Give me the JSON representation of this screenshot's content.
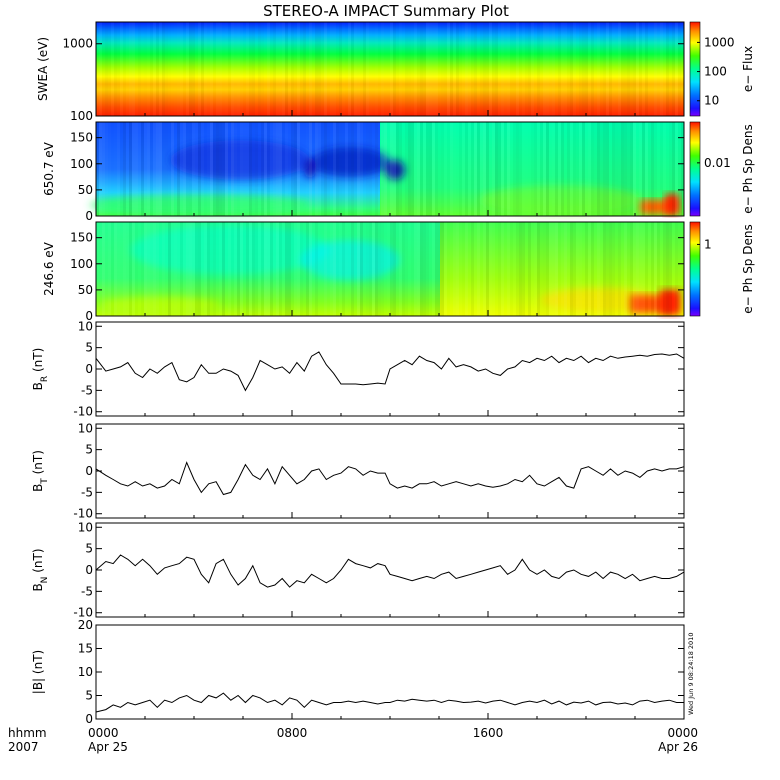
{
  "title": "STEREO-A IMPACT Summary Plot",
  "timestamp": "Wed Jun  9 08:24:18 2010",
  "time_axis": {
    "row1_label": "hhmm",
    "row2_label": "2007",
    "ticks": [
      {
        "hour": 0,
        "time": "0000",
        "date": "Apr 25"
      },
      {
        "hour": 8,
        "time": "0800",
        "date": ""
      },
      {
        "hour": 16,
        "time": "1600",
        "date": ""
      },
      {
        "hour": 24,
        "time": "0000",
        "date": "Apr 26"
      }
    ]
  },
  "chart_data": [
    {
      "type": "heatmap",
      "ylabel": "SWEA (eV)",
      "y_scale": "log",
      "ylim": [
        100,
        2000
      ],
      "yticks": [
        {
          "v": 100,
          "label": "100"
        },
        {
          "v": 1000,
          "label": "1000"
        }
      ],
      "colorbar_label": "e− Flux",
      "colorbar_scale": "log",
      "colorbar_range": [
        3,
        5000
      ],
      "colorbar_ticks": [
        {
          "v": 10,
          "label": "10"
        },
        {
          "v": 100,
          "label": "100"
        },
        {
          "v": 1000,
          "label": "1000"
        }
      ]
    },
    {
      "type": "heatmap",
      "ylabel": "650.7 eV",
      "ylim": [
        0,
        180
      ],
      "yticks": [
        {
          "v": 0,
          "label": "0"
        },
        {
          "v": 50,
          "label": "50"
        },
        {
          "v": 100,
          "label": "100"
        },
        {
          "v": 150,
          "label": "150"
        }
      ],
      "colorbar_label": "e− Ph Sp Dens",
      "colorbar_scale": "log",
      "colorbar_range": [
        0.0005,
        0.1
      ],
      "colorbar_ticks": [
        {
          "v": 0.01,
          "label": "0.01"
        }
      ]
    },
    {
      "type": "heatmap",
      "ylabel": "246.6 eV",
      "ylim": [
        0,
        180
      ],
      "yticks": [
        {
          "v": 0,
          "label": "0"
        },
        {
          "v": 50,
          "label": "50"
        },
        {
          "v": 100,
          "label": "100"
        },
        {
          "v": 150,
          "label": "150"
        }
      ],
      "colorbar_label": "e− Ph Sp Dens",
      "colorbar_scale": "log",
      "colorbar_range": [
        0.03,
        3
      ],
      "colorbar_ticks": [
        {
          "v": 1,
          "label": "1"
        }
      ]
    },
    {
      "type": "line",
      "ylabel": "B",
      "ylabel_sub": "R",
      "ylabel_unit": " (nT)",
      "ylim": [
        -11,
        11
      ],
      "yticks": [
        -10,
        -5,
        0,
        5,
        10
      ],
      "x_hours": [
        0,
        0.4,
        0.7,
        1.0,
        1.3,
        1.6,
        1.9,
        2.2,
        2.5,
        2.8,
        3.1,
        3.4,
        3.7,
        4.0,
        4.3,
        4.6,
        4.9,
        5.2,
        5.5,
        5.8,
        6.1,
        6.4,
        6.7,
        7.0,
        7.3,
        7.6,
        7.9,
        8.2,
        8.5,
        8.8,
        9.1,
        9.4,
        9.7,
        10.0,
        10.3,
        10.6,
        10.9,
        11.2,
        11.5,
        11.8,
        12.0,
        12.3,
        12.6,
        12.9,
        13.2,
        13.5,
        13.8,
        14.1,
        14.4,
        14.7,
        15.0,
        15.3,
        15.6,
        15.9,
        16.2,
        16.5,
        16.8,
        17.1,
        17.4,
        17.7,
        18.0,
        18.3,
        18.6,
        18.9,
        19.2,
        19.5,
        19.8,
        20.1,
        20.4,
        20.7,
        21.0,
        21.3,
        21.6,
        21.9,
        22.2,
        22.5,
        22.8,
        23.1,
        23.4,
        23.7,
        24.0
      ],
      "values": [
        2.5,
        -0.5,
        0.0,
        0.5,
        1.5,
        -1.0,
        -2.0,
        0.0,
        -1.0,
        0.5,
        1.5,
        -2.5,
        -3.0,
        -2.0,
        1.0,
        -1.0,
        -1.0,
        0.0,
        -0.5,
        -1.5,
        -5.0,
        -2.0,
        2.0,
        1.0,
        0.0,
        0.5,
        -1.0,
        1.5,
        -0.5,
        3.0,
        4.0,
        1.0,
        -1.0,
        -3.5,
        -3.5,
        -3.5,
        -3.7,
        -3.5,
        -3.3,
        -3.5,
        0.0,
        1.0,
        2.0,
        1.0,
        3.0,
        2.0,
        1.5,
        0.0,
        2.5,
        0.5,
        1.0,
        0.5,
        -0.5,
        0.0,
        -1.0,
        -1.5,
        0.0,
        0.5,
        2.0,
        1.5,
        2.5,
        2.0,
        3.0,
        1.5,
        2.5,
        2.0,
        3.0,
        1.5,
        2.5,
        2.0,
        3.0,
        2.5,
        2.8,
        3.0,
        3.2,
        3.0,
        3.4,
        3.5,
        3.2,
        3.5,
        2.5
      ]
    },
    {
      "type": "line",
      "ylabel": "B",
      "ylabel_sub": "T",
      "ylabel_unit": " (nT)",
      "ylim": [
        -11,
        11
      ],
      "yticks": [
        -10,
        -5,
        0,
        5,
        10
      ],
      "x_hours": [
        0,
        0.4,
        0.7,
        1.0,
        1.3,
        1.6,
        1.9,
        2.2,
        2.5,
        2.8,
        3.1,
        3.4,
        3.7,
        4.0,
        4.3,
        4.6,
        4.9,
        5.2,
        5.5,
        5.8,
        6.1,
        6.4,
        6.7,
        7.0,
        7.3,
        7.6,
        7.9,
        8.2,
        8.5,
        8.8,
        9.1,
        9.4,
        9.7,
        10.0,
        10.3,
        10.6,
        10.9,
        11.2,
        11.5,
        11.8,
        12.0,
        12.3,
        12.6,
        12.9,
        13.2,
        13.5,
        13.8,
        14.1,
        14.4,
        14.7,
        15.0,
        15.3,
        15.6,
        15.9,
        16.2,
        16.5,
        16.8,
        17.1,
        17.4,
        17.7,
        18.0,
        18.3,
        18.6,
        18.9,
        19.2,
        19.5,
        19.8,
        20.1,
        20.4,
        20.7,
        21.0,
        21.3,
        21.6,
        21.9,
        22.2,
        22.5,
        22.8,
        23.1,
        23.4,
        23.7,
        24.0
      ],
      "values": [
        0.5,
        -1.0,
        -2.0,
        -3.0,
        -3.5,
        -2.5,
        -3.5,
        -3.0,
        -4.0,
        -3.5,
        -2.0,
        -3.0,
        2.0,
        -2.0,
        -5.0,
        -3.0,
        -2.5,
        -5.5,
        -5.0,
        -2.0,
        1.5,
        -1.0,
        -2.0,
        0.5,
        -3.0,
        1.0,
        -1.0,
        -3.0,
        -2.0,
        0.0,
        0.5,
        -2.0,
        -1.0,
        -0.5,
        1.0,
        0.5,
        -1.0,
        0.0,
        -0.5,
        -0.5,
        -3.0,
        -4.0,
        -3.5,
        -4.0,
        -3.0,
        -3.0,
        -2.5,
        -3.5,
        -3.0,
        -2.5,
        -3.0,
        -3.5,
        -3.0,
        -3.5,
        -3.8,
        -3.5,
        -3.0,
        -2.0,
        -2.5,
        -1.0,
        -3.0,
        -3.5,
        -2.5,
        -1.5,
        -3.5,
        -4.0,
        0.5,
        1.0,
        0.0,
        -1.0,
        0.5,
        -1.0,
        0.0,
        -0.5,
        -1.5,
        0.0,
        0.5,
        0.0,
        0.5,
        0.5,
        1.0
      ]
    },
    {
      "type": "line",
      "ylabel": "B",
      "ylabel_sub": "N",
      "ylabel_unit": " (nT)",
      "ylim": [
        -11,
        11
      ],
      "yticks": [
        -10,
        -5,
        0,
        5,
        10
      ],
      "x_hours": [
        0,
        0.4,
        0.7,
        1.0,
        1.3,
        1.6,
        1.9,
        2.2,
        2.5,
        2.8,
        3.1,
        3.4,
        3.7,
        4.0,
        4.3,
        4.6,
        4.9,
        5.2,
        5.5,
        5.8,
        6.1,
        6.4,
        6.7,
        7.0,
        7.3,
        7.6,
        7.9,
        8.2,
        8.5,
        8.8,
        9.1,
        9.4,
        9.7,
        10.0,
        10.3,
        10.6,
        10.9,
        11.2,
        11.5,
        11.8,
        12.0,
        12.3,
        12.6,
        12.9,
        13.2,
        13.5,
        13.8,
        14.1,
        14.4,
        14.7,
        15.0,
        15.3,
        15.6,
        15.9,
        16.2,
        16.5,
        16.8,
        17.1,
        17.4,
        17.7,
        18.0,
        18.3,
        18.6,
        18.9,
        19.2,
        19.5,
        19.8,
        20.1,
        20.4,
        20.7,
        21.0,
        21.3,
        21.6,
        21.9,
        22.2,
        22.5,
        22.8,
        23.1,
        23.4,
        23.7,
        24.0
      ],
      "values": [
        0.0,
        2.0,
        1.5,
        3.5,
        2.5,
        1.0,
        2.5,
        1.0,
        -1.0,
        0.5,
        1.0,
        1.5,
        3.0,
        2.5,
        -1.0,
        -3.0,
        1.5,
        2.5,
        -1.0,
        -3.5,
        -2.0,
        1.0,
        -3.0,
        -4.0,
        -3.5,
        -2.0,
        -4.0,
        -2.5,
        -3.0,
        -1.0,
        -2.0,
        -3.0,
        -2.0,
        0.0,
        2.5,
        1.5,
        1.0,
        0.5,
        1.5,
        1.0,
        -1.0,
        -1.5,
        -2.0,
        -2.5,
        -2.0,
        -1.5,
        -2.0,
        -1.0,
        -0.5,
        -2.0,
        -1.5,
        -1.0,
        -0.5,
        0.0,
        0.5,
        1.0,
        -1.0,
        0.0,
        2.5,
        0.0,
        -1.0,
        0.0,
        -1.5,
        -2.0,
        -0.5,
        0.0,
        -1.0,
        -1.5,
        -0.5,
        -2.0,
        -0.5,
        -1.0,
        -2.0,
        -1.0,
        -2.5,
        -2.0,
        -1.5,
        -2.0,
        -2.0,
        -1.5,
        -0.5
      ]
    },
    {
      "type": "line",
      "ylabel": "|B|",
      "ylabel_sub": "",
      "ylabel_unit": " (nT)",
      "ylim": [
        0,
        20
      ],
      "yticks": [
        0,
        5,
        10,
        15,
        20
      ],
      "x_hours": [
        0,
        0.4,
        0.7,
        1.0,
        1.3,
        1.6,
        1.9,
        2.2,
        2.5,
        2.8,
        3.1,
        3.4,
        3.7,
        4.0,
        4.3,
        4.6,
        4.9,
        5.2,
        5.5,
        5.8,
        6.1,
        6.4,
        6.7,
        7.0,
        7.3,
        7.6,
        7.9,
        8.2,
        8.5,
        8.8,
        9.1,
        9.4,
        9.7,
        10.0,
        10.3,
        10.6,
        10.9,
        11.2,
        11.5,
        11.8,
        12.0,
        12.3,
        12.6,
        12.9,
        13.2,
        13.5,
        13.8,
        14.1,
        14.4,
        14.7,
        15.0,
        15.3,
        15.6,
        15.9,
        16.2,
        16.5,
        16.8,
        17.1,
        17.4,
        17.7,
        18.0,
        18.3,
        18.6,
        18.9,
        19.2,
        19.5,
        19.8,
        20.1,
        20.4,
        20.7,
        21.0,
        21.3,
        21.6,
        21.9,
        22.2,
        22.5,
        22.8,
        23.1,
        23.4,
        23.7,
        24.0
      ],
      "values": [
        1.5,
        2.0,
        3.0,
        2.5,
        3.5,
        3.0,
        3.5,
        4.0,
        2.5,
        4.0,
        3.5,
        4.5,
        5.0,
        4.0,
        3.5,
        5.0,
        4.5,
        5.5,
        4.0,
        5.0,
        3.5,
        5.0,
        4.5,
        3.5,
        4.0,
        3.0,
        4.5,
        4.0,
        2.5,
        4.0,
        3.5,
        3.0,
        3.5,
        3.5,
        3.8,
        3.5,
        3.8,
        3.5,
        3.2,
        3.5,
        3.5,
        4.0,
        3.8,
        4.2,
        4.0,
        3.8,
        4.0,
        3.5,
        4.0,
        3.8,
        3.5,
        3.6,
        3.8,
        3.4,
        3.8,
        4.0,
        3.5,
        3.0,
        3.5,
        3.8,
        3.5,
        4.0,
        3.2,
        3.8,
        3.0,
        3.6,
        3.4,
        3.8,
        3.0,
        3.5,
        3.6,
        3.2,
        3.4,
        3.0,
        3.8,
        4.0,
        3.5,
        3.8,
        4.0,
        3.5,
        3.5
      ]
    }
  ]
}
